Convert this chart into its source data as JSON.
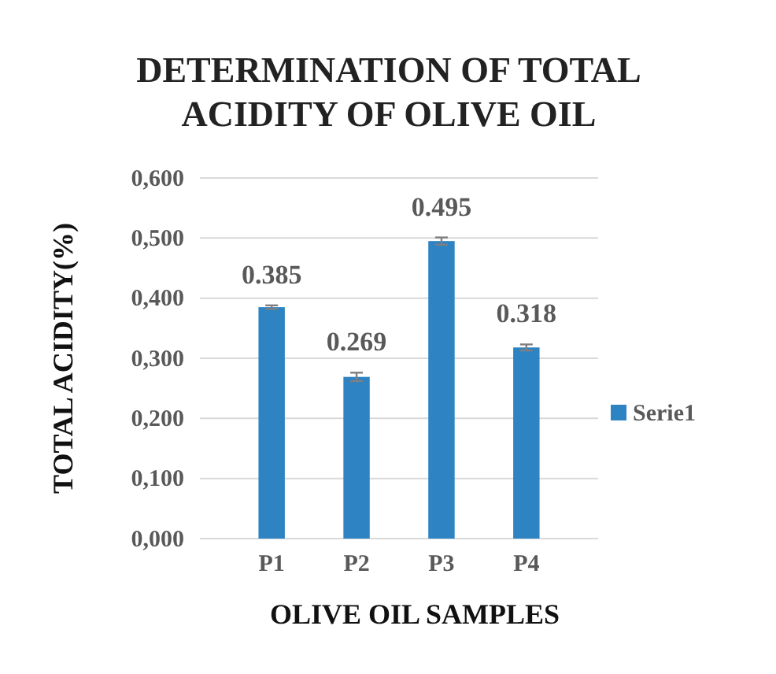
{
  "chart_data": {
    "type": "bar",
    "title": "DETERMINATION OF TOTAL ACIDITY OF OLIVE OIL",
    "xlabel": "OLIVE OIL SAMPLES",
    "ylabel": "TOTAL ACIDITY(%)",
    "categories": [
      "P1",
      "P2",
      "P3",
      "P4"
    ],
    "series": [
      {
        "name": "Serie1",
        "color": "#2e83c3",
        "values": [
          0.385,
          0.269,
          0.495,
          0.318
        ],
        "errors": [
          0.003,
          0.007,
          0.006,
          0.005
        ],
        "value_labels": [
          "0.385",
          "0.269",
          "0.495",
          "0.318"
        ]
      }
    ],
    "ylim": [
      0,
      0.6
    ],
    "yticks": [
      {
        "value": 0,
        "label": "0,000"
      },
      {
        "value": 0.1,
        "label": "0,100"
      },
      {
        "value": 0.2,
        "label": "0,200"
      },
      {
        "value": 0.3,
        "label": "0,300"
      },
      {
        "value": 0.4,
        "label": "0,400"
      },
      {
        "value": 0.5,
        "label": "0,500"
      },
      {
        "value": 0.6,
        "label": "0,600"
      }
    ],
    "grid": "y",
    "legend": "right"
  }
}
